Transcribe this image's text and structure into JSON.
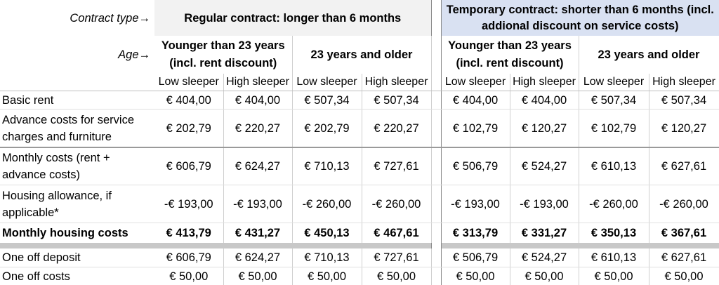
{
  "header": {
    "contract_type_label": "Contract type→",
    "regular_contract": "Regular contract: longer than 6 months",
    "temporary_contract": "Temporary contract: shorter than 6 months (incl. addional discount on service costs)",
    "age_label": "Age→",
    "ages": [
      "Younger than 23 years (incl. rent discount)",
      "23 years and older",
      "Younger than 23 years (incl. rent discount)",
      "23 years and older"
    ],
    "sleepers": [
      "Low sleeper",
      "High sleeper",
      "Low sleeper",
      "High sleeper",
      "Low sleeper",
      "High sleeper",
      "Low sleeper",
      "High sleeper"
    ]
  },
  "rows": [
    {
      "label": "Basic rent",
      "values": [
        "€ 404,00",
        "€ 404,00",
        "€ 507,34",
        "€ 507,34",
        "€ 404,00",
        "€ 404,00",
        "€ 507,34",
        "€ 507,34"
      ]
    },
    {
      "label": "Advance costs for service charges and furniture",
      "values": [
        "€ 202,79",
        "€ 220,27",
        "€ 202,79",
        "€ 220,27",
        "€ 102,79",
        "€ 120,27",
        "€ 102,79",
        "€ 120,27"
      ]
    },
    {
      "label": "Monthly costs (rent + advance costs)",
      "values": [
        "€ 606,79",
        "€ 624,27",
        "€ 710,13",
        "€ 727,61",
        "€ 506,79",
        "€ 524,27",
        "€ 610,13",
        "€ 627,61"
      ]
    },
    {
      "label": "Housing allowance, if applicable*",
      "values": [
        "-€ 193,00",
        "-€ 193,00",
        "-€ 260,00",
        "-€ 260,00",
        "-€ 193,00",
        "-€ 193,00",
        "-€ 260,00",
        "-€ 260,00"
      ]
    },
    {
      "label": "Monthly housing costs",
      "values": [
        "€ 413,79",
        "€ 431,27",
        "€ 450,13",
        "€ 467,61",
        "€ 313,79",
        "€ 331,27",
        "€ 350,13",
        "€ 367,61"
      ]
    },
    {
      "label": "One off deposit",
      "values": [
        "€ 606,79",
        "€ 624,27",
        "€ 710,13",
        "€ 727,61",
        "€ 506,79",
        "€ 524,27",
        "€ 610,13",
        "€ 627,61"
      ]
    },
    {
      "label": "One off costs",
      "values": [
        "€ 50,00",
        "€ 50,00",
        "€ 50,00",
        "€ 50,00",
        "€ 50,00",
        "€ 50,00",
        "€ 50,00",
        "€ 50,00"
      ]
    }
  ]
}
